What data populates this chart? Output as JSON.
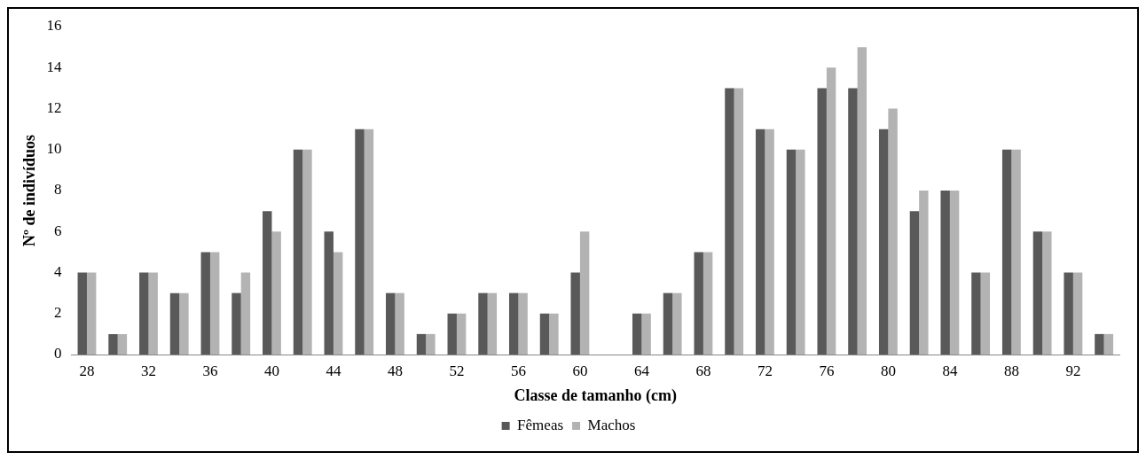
{
  "chart_data": {
    "type": "bar",
    "xlabel": "Classe de tamanho (cm)",
    "ylabel": "Nº de indivíduos",
    "categories": [
      "28",
      null,
      "32",
      null,
      "36",
      null,
      "40",
      null,
      "44",
      null,
      "48",
      null,
      "52",
      null,
      "56",
      null,
      "60",
      null,
      "64",
      null,
      "68",
      null,
      "72",
      null,
      "76",
      null,
      "80",
      null,
      "84",
      null,
      "88",
      null,
      "92",
      null
    ],
    "series": [
      {
        "name": "Fêmeas",
        "color": "#595959",
        "values": [
          4,
          1,
          4,
          3,
          5,
          3,
          7,
          10,
          6,
          11,
          3,
          1,
          2,
          3,
          3,
          2,
          4,
          0,
          2,
          3,
          5,
          13,
          11,
          10,
          13,
          13,
          11,
          7,
          8,
          4,
          10,
          6,
          4,
          1
        ]
      },
      {
        "name": "Machos",
        "color": "#b3b3b3",
        "values": [
          4,
          1,
          4,
          3,
          5,
          4,
          6,
          10,
          5,
          11,
          3,
          1,
          2,
          3,
          3,
          2,
          6,
          0,
          2,
          3,
          5,
          13,
          11,
          10,
          14,
          15,
          12,
          8,
          8,
          4,
          10,
          6,
          4,
          1
        ]
      }
    ],
    "ylim": [
      0,
      16
    ],
    "yticks": [
      0,
      2,
      4,
      6,
      8,
      10,
      12,
      14,
      16
    ],
    "grid": false,
    "legend": "bottom"
  }
}
